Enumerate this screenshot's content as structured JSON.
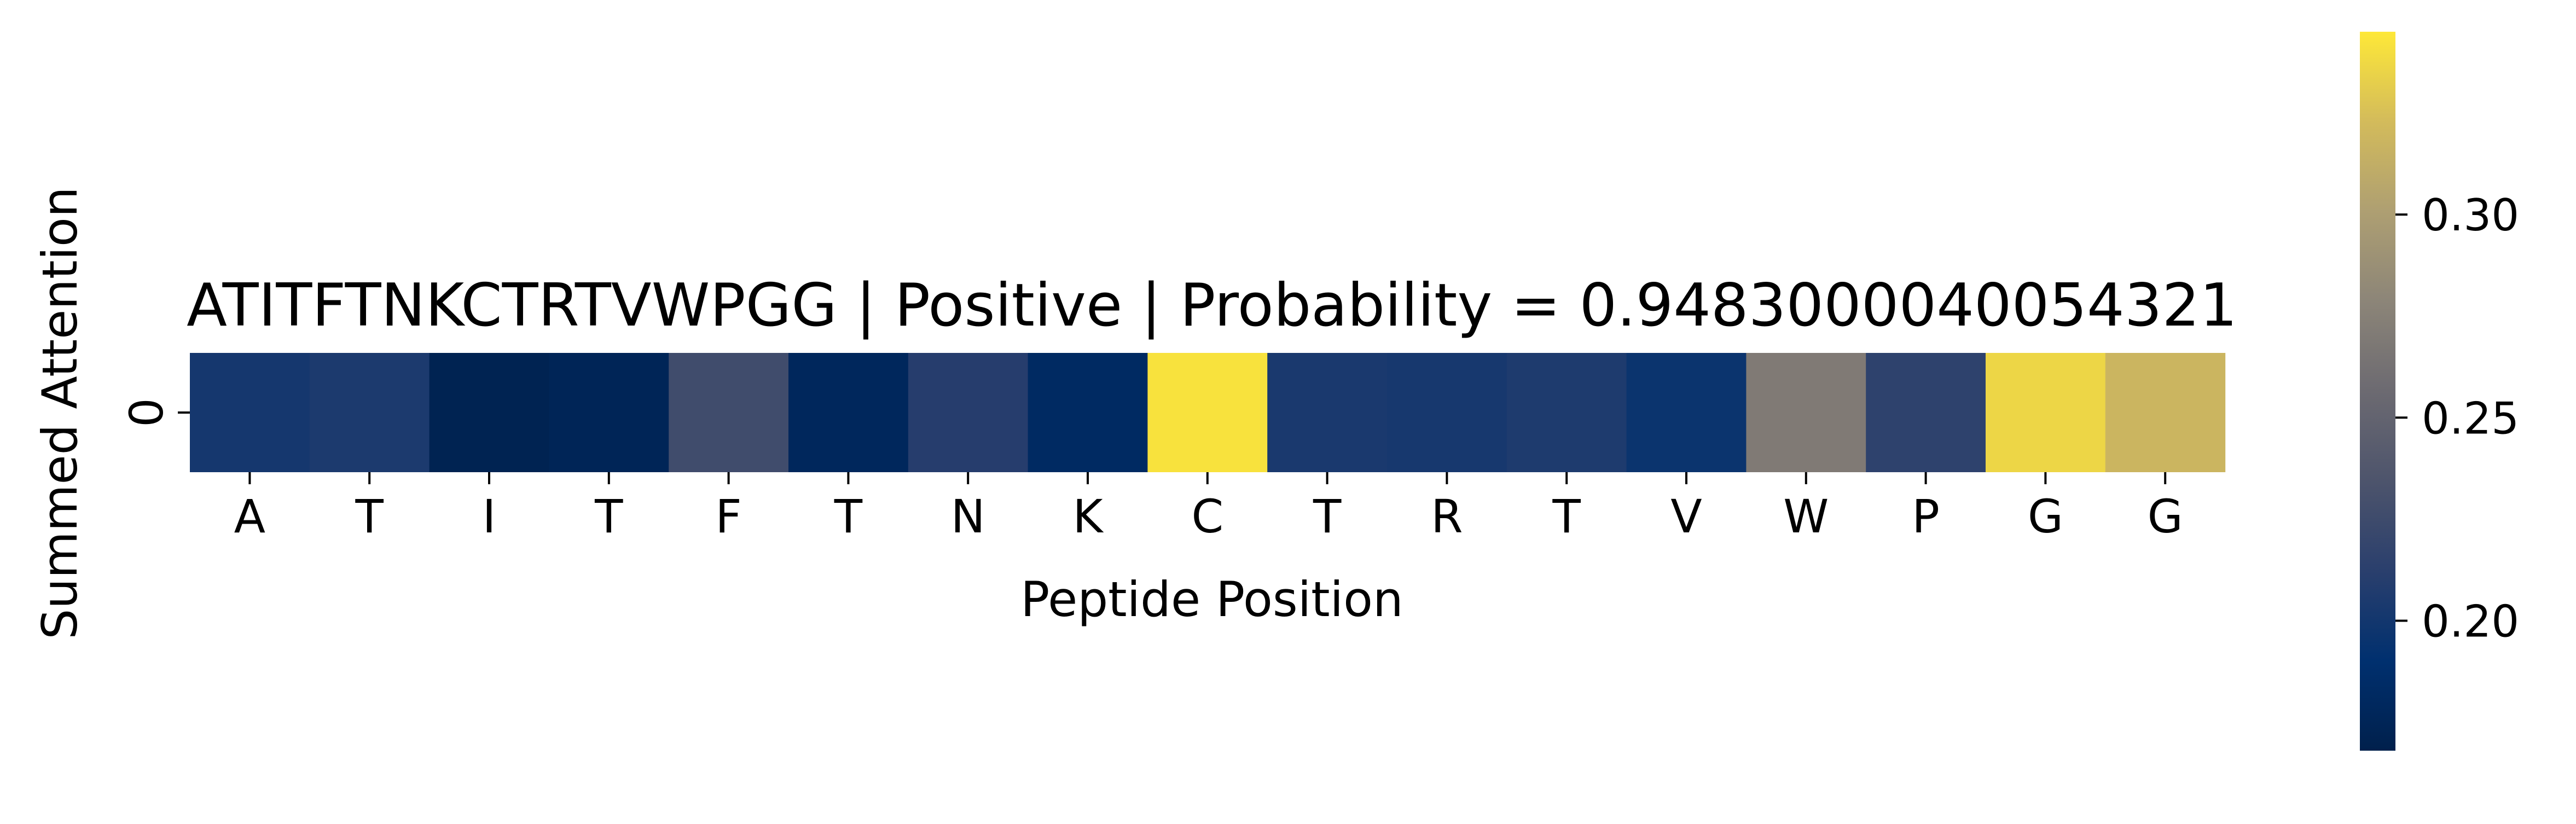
{
  "chart_data": {
    "type": "heatmap",
    "title": "ATITFTNKCTRTVWPGG | Positive | Probability = 0.9483000040054321",
    "xlabel": "Peptide Position",
    "ylabel": "Summed Attention",
    "x": [
      "A",
      "T",
      "I",
      "T",
      "F",
      "T",
      "N",
      "K",
      "C",
      "T",
      "R",
      "T",
      "V",
      "W",
      "P",
      "G",
      "G"
    ],
    "y": [
      "0"
    ],
    "values": [
      [
        0.201,
        0.205,
        0.172,
        0.175,
        0.226,
        0.178,
        0.21,
        0.182,
        0.342,
        0.204,
        0.202,
        0.206,
        0.196,
        0.27,
        0.215,
        0.336,
        0.318
      ]
    ],
    "colormap": "cividis",
    "colorbar": {
      "min": 0.168,
      "max": 0.345,
      "ticks": [
        0.2,
        0.25,
        0.3
      ],
      "tick_labels": [
        "0.20",
        "0.25",
        "0.30"
      ]
    },
    "grid": false
  }
}
